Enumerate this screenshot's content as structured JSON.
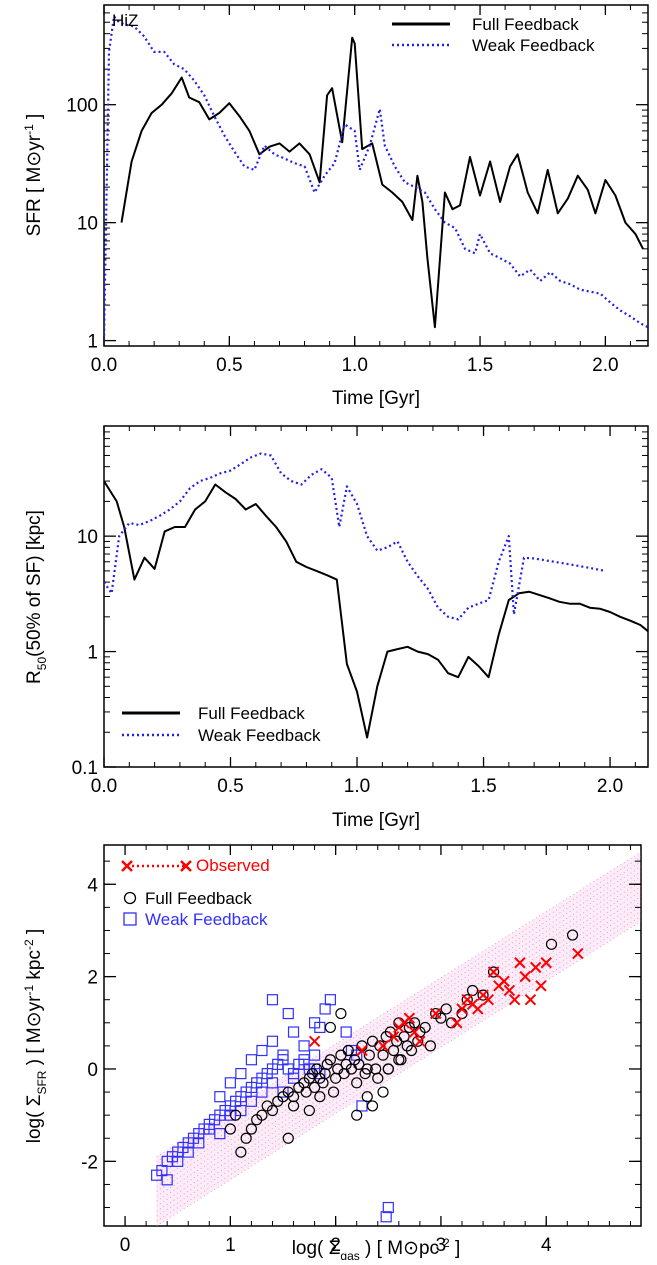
{
  "chart_data": [
    {
      "type": "line",
      "title": "",
      "annotation": "HiZ",
      "xlabel": "Time  [Gyr]",
      "ylabel": {
        "main": "SFR  [ M",
        "sun": "⊙",
        "mid": "yr",
        "sup": "-1",
        "end": "]"
      },
      "xlim": [
        0,
        2.17
      ],
      "ylim": [
        0.9,
        700
      ],
      "yscale": "log",
      "xticks": [
        "0.0",
        "0.5",
        "1.0",
        "1.5",
        "2.0"
      ],
      "xtick_values": [
        0,
        0.5,
        1.0,
        1.5,
        2.0
      ],
      "yticks": [
        "1",
        "10",
        "100"
      ],
      "ytick_values": [
        1,
        10,
        100
      ],
      "legend_position": "top-right",
      "series": [
        {
          "name": "Full Feedback",
          "color": "#000000",
          "style": "solid",
          "x": [
            0.07,
            0.11,
            0.15,
            0.19,
            0.23,
            0.27,
            0.31,
            0.34,
            0.38,
            0.42,
            0.46,
            0.5,
            0.54,
            0.58,
            0.62,
            0.66,
            0.7,
            0.74,
            0.78,
            0.82,
            0.86,
            0.89,
            0.91,
            0.95,
            0.99,
            1.0,
            1.03,
            1.07,
            1.11,
            1.15,
            1.19,
            1.23,
            1.25,
            1.27,
            1.29,
            1.32,
            1.36,
            1.39,
            1.42,
            1.46,
            1.5,
            1.54,
            1.58,
            1.62,
            1.65,
            1.69,
            1.73,
            1.77,
            1.81,
            1.85,
            1.89,
            1.93,
            1.96,
            2.0,
            2.04,
            2.08,
            2.12,
            2.15
          ],
          "y": [
            10,
            33,
            60,
            85,
            100,
            125,
            170,
            115,
            105,
            75,
            85,
            103,
            80,
            60,
            38,
            44,
            47,
            40,
            47,
            38,
            22,
            120,
            138,
            48,
            370,
            330,
            42,
            47,
            21,
            18,
            15,
            10.5,
            25,
            15,
            5,
            1.3,
            18,
            13,
            14,
            36,
            17,
            33,
            15,
            30,
            38,
            18,
            12,
            28,
            12,
            16,
            25,
            19,
            12,
            23,
            17,
            10,
            8,
            6
          ]
        },
        {
          "name": "Weak Feedback",
          "color": "#2020e8",
          "style": "dotted",
          "x": [
            0.0,
            0.02,
            0.04,
            0.06,
            0.08,
            0.12,
            0.16,
            0.2,
            0.24,
            0.28,
            0.32,
            0.36,
            0.4,
            0.44,
            0.48,
            0.52,
            0.56,
            0.6,
            0.64,
            0.68,
            0.72,
            0.76,
            0.8,
            0.84,
            0.88,
            0.92,
            0.96,
            1.0,
            1.02,
            1.06,
            1.1,
            1.12,
            1.16,
            1.2,
            1.24,
            1.28,
            1.32,
            1.36,
            1.4,
            1.44,
            1.48,
            1.5,
            1.54,
            1.58,
            1.62,
            1.66,
            1.7,
            1.74,
            1.78,
            1.82,
            1.86,
            1.9,
            1.94,
            1.98,
            2.02,
            2.06,
            2.1,
            2.14,
            2.17
          ],
          "y": [
            1,
            280,
            560,
            500,
            480,
            460,
            380,
            280,
            280,
            220,
            200,
            160,
            120,
            80,
            55,
            40,
            30,
            28,
            45,
            38,
            35,
            32,
            30,
            18,
            25,
            32,
            68,
            60,
            28,
            45,
            92,
            45,
            30,
            22,
            20,
            18,
            13,
            10,
            9,
            6,
            5.5,
            8,
            5.5,
            5,
            4.5,
            3.5,
            4,
            3.2,
            3.8,
            3.2,
            3,
            2.7,
            2.6,
            2.5,
            2.1,
            1.8,
            1.6,
            1.4,
            1.3
          ]
        }
      ]
    },
    {
      "type": "line",
      "title": "",
      "xlabel": "Time  [Gyr]",
      "ylabel": {
        "main": "R",
        "sub": "50",
        "rest": "(50% of SF)  [kpc]"
      },
      "xlim": [
        0,
        2.15
      ],
      "ylim": [
        0.1,
        90
      ],
      "yscale": "log",
      "xticks": [
        "0.0",
        "0.5",
        "1.0",
        "1.5",
        "2.0"
      ],
      "xtick_values": [
        0,
        0.5,
        1.0,
        1.5,
        2.0
      ],
      "yticks": [
        "0.1",
        "1",
        "10"
      ],
      "ytick_values": [
        0.1,
        1,
        10
      ],
      "legend_position": "bottom-left",
      "series": [
        {
          "name": "Full Feedback",
          "color": "#000000",
          "style": "solid",
          "x": [
            0.0,
            0.05,
            0.08,
            0.12,
            0.16,
            0.2,
            0.24,
            0.28,
            0.32,
            0.36,
            0.4,
            0.44,
            0.48,
            0.52,
            0.56,
            0.6,
            0.64,
            0.68,
            0.72,
            0.76,
            0.8,
            0.84,
            0.88,
            0.92,
            0.96,
            1.0,
            1.04,
            1.08,
            1.12,
            1.16,
            1.2,
            1.24,
            1.28,
            1.32,
            1.36,
            1.4,
            1.44,
            1.48,
            1.52,
            1.56,
            1.6,
            1.64,
            1.68,
            1.72,
            1.76,
            1.8,
            1.84,
            1.88,
            1.92,
            1.96,
            2.0,
            2.04,
            2.08,
            2.12,
            2.15
          ],
          "y": [
            30,
            20,
            12,
            4.2,
            6.5,
            5.2,
            11,
            12,
            12,
            17,
            20,
            28,
            24,
            21,
            17,
            19,
            15,
            12,
            9,
            6,
            5.4,
            5,
            4.6,
            4.2,
            0.78,
            0.45,
            0.18,
            0.5,
            1,
            1.05,
            1.1,
            1,
            0.95,
            0.85,
            0.65,
            0.6,
            0.9,
            0.75,
            0.6,
            1.4,
            2.8,
            3.2,
            3.3,
            3.1,
            2.9,
            2.7,
            2.6,
            2.6,
            2.4,
            2.35,
            2.2,
            2.0,
            1.85,
            1.7,
            1.5
          ]
        },
        {
          "name": "Weak Feedback",
          "color": "#2020e8",
          "style": "dotted",
          "x": [
            0.0,
            0.03,
            0.06,
            0.1,
            0.14,
            0.18,
            0.22,
            0.26,
            0.3,
            0.34,
            0.38,
            0.42,
            0.46,
            0.5,
            0.54,
            0.58,
            0.62,
            0.66,
            0.7,
            0.74,
            0.78,
            0.82,
            0.86,
            0.9,
            0.93,
            0.96,
            1.0,
            1.04,
            1.08,
            1.12,
            1.16,
            1.2,
            1.24,
            1.28,
            1.32,
            1.36,
            1.4,
            1.44,
            1.48,
            1.52,
            1.56,
            1.6,
            1.62,
            1.66,
            1.7,
            1.74,
            1.78,
            1.82,
            1.86,
            1.9,
            1.94,
            1.98
          ],
          "y": [
            4,
            3.2,
            10,
            13,
            12.5,
            13.5,
            15,
            17,
            20,
            26,
            30,
            32,
            35,
            37,
            42,
            48,
            52,
            50,
            35,
            30,
            28,
            34,
            38,
            32,
            12,
            27,
            19,
            10,
            7.5,
            8,
            9,
            6,
            4.5,
            3.5,
            2.4,
            2,
            1.9,
            2.4,
            2.6,
            2.8,
            6,
            10,
            2.1,
            6.5,
            6.4,
            6.2,
            6,
            5.8,
            5.6,
            5.4,
            5.2,
            5.0
          ]
        }
      ]
    },
    {
      "type": "scatter",
      "title": "",
      "xlabel": {
        "main": "log( Σ",
        "sub": "gas",
        "mid": " )  [ M",
        "sun": "⊙",
        "end": "pc",
        "sup": "-2",
        "close": " ]"
      },
      "ylabel": {
        "main": "log( Σ",
        "sub": "SFR",
        "mid": " )  [ M",
        "sun": "⊙",
        "yr": "yr",
        "sup1": "-1",
        "kpc": " kpc",
        "sup2": "-2",
        "close": " ]"
      },
      "xlim": [
        -0.2,
        4.9
      ],
      "ylim": [
        -3.4,
        4.85
      ],
      "xticks": [
        "0",
        "1",
        "2",
        "3",
        "4"
      ],
      "xtick_values": [
        0,
        1,
        2,
        3,
        4
      ],
      "yticks": [
        "-2",
        "0",
        "2",
        "4"
      ],
      "ytick_values": [
        -2,
        0,
        2,
        4
      ],
      "legend_position": "top-left",
      "band": {
        "color": "#e070c0",
        "lower": [
          [
            0.3,
            -3.4
          ],
          [
            4.9,
            3.2
          ]
        ],
        "upper": [
          [
            0.3,
            -1.9
          ],
          [
            4.9,
            4.7
          ]
        ]
      },
      "series": [
        {
          "name": "Observed",
          "marker": "x",
          "color": "#ff0000",
          "x": [
            1.8,
            2.25,
            2.45,
            2.55,
            2.6,
            2.65,
            2.7,
            2.75,
            2.8,
            2.95,
            3.15,
            3.2,
            3.25,
            3.3,
            3.35,
            3.4,
            3.45,
            3.5,
            3.55,
            3.6,
            3.65,
            3.7,
            3.75,
            3.8,
            3.85,
            3.9,
            3.95,
            4.0,
            4.3
          ],
          "y": [
            0.6,
            0.4,
            0.5,
            0.7,
            0.9,
            1.0,
            1.1,
            0.8,
            0.6,
            1.2,
            1.0,
            1.3,
            1.5,
            1.4,
            1.3,
            1.6,
            1.5,
            2.1,
            1.8,
            1.9,
            1.7,
            1.5,
            2.3,
            2.0,
            1.5,
            2.2,
            1.8,
            2.3,
            2.5
          ]
        },
        {
          "name": "Full Feedback",
          "marker": "circle",
          "color": "#000000",
          "x": [
            1.1,
            1.15,
            1.2,
            1.25,
            1.3,
            1.35,
            1.4,
            1.45,
            1.5,
            1.55,
            1.6,
            1.65,
            1.7,
            1.72,
            1.75,
            1.78,
            1.8,
            1.82,
            1.85,
            1.88,
            1.9,
            1.92,
            1.95,
            1.98,
            2.0,
            2.02,
            2.05,
            2.08,
            2.1,
            2.12,
            2.15,
            2.18,
            2.2,
            2.22,
            2.25,
            2.28,
            2.3,
            2.32,
            2.35,
            2.38,
            2.4,
            2.42,
            2.45,
            2.48,
            2.5,
            2.52,
            2.55,
            2.58,
            2.6,
            2.62,
            2.65,
            2.68,
            2.7,
            2.72,
            2.75,
            2.78,
            2.8,
            2.85,
            2.9,
            2.95,
            3.0,
            3.05,
            3.1,
            3.2,
            3.25,
            3.3,
            3.4,
            3.5,
            4.05,
            4.25,
            1.0,
            1.05,
            1.55,
            1.6,
            1.75,
            2.2,
            2.3,
            2.35,
            2.45,
            2.5,
            2.6,
            1.95,
            2.05,
            1.85
          ],
          "y": [
            -1.8,
            -1.5,
            -1.3,
            -1.1,
            -1.0,
            -0.8,
            -0.9,
            -0.7,
            -0.6,
            -0.5,
            -0.6,
            -0.4,
            -0.3,
            -0.5,
            -0.2,
            -0.1,
            -0.4,
            0.0,
            -0.2,
            -0.3,
            -0.1,
            0.1,
            0.2,
            -0.5,
            -0.2,
            0.0,
            0.3,
            -0.1,
            0.1,
            0.4,
            0.0,
            0.2,
            -0.3,
            0.1,
            0.5,
            -0.1,
            0.0,
            0.3,
            0.6,
            0.0,
            -0.2,
            0.5,
            0.3,
            0.7,
            0.0,
            0.8,
            0.4,
            0.6,
            1.0,
            0.2,
            0.7,
            0.5,
            0.9,
            0.4,
            1.0,
            0.6,
            0.8,
            0.9,
            0.5,
            1.2,
            1.1,
            1.3,
            1.0,
            1.2,
            1.5,
            1.7,
            1.6,
            2.1,
            2.7,
            2.9,
            -1.3,
            -1.0,
            -1.5,
            -0.8,
            -0.9,
            -1.0,
            -0.6,
            -0.8,
            -0.5,
            0.0,
            0.2,
            0.9,
            1.2,
            -0.6
          ]
        },
        {
          "name": "Weak Feedback",
          "marker": "square",
          "color": "#3030ff",
          "x": [
            0.3,
            0.35,
            0.4,
            0.45,
            0.5,
            0.55,
            0.6,
            0.65,
            0.7,
            0.75,
            0.8,
            0.85,
            0.9,
            0.95,
            1.0,
            1.05,
            1.1,
            1.15,
            1.2,
            1.25,
            1.3,
            1.35,
            1.4,
            1.45,
            1.5,
            1.55,
            1.6,
            1.65,
            1.7,
            1.75,
            1.8,
            1.85,
            0.4,
            0.5,
            0.6,
            0.7,
            0.8,
            0.9,
            1.0,
            1.1,
            1.2,
            1.3,
            1.4,
            1.5,
            1.6,
            1.7,
            1.8,
            0.9,
            1.0,
            1.1,
            1.2,
            1.3,
            1.4,
            1.5,
            1.6,
            1.7,
            1.8,
            1.9,
            1.95,
            2.1,
            2.15,
            2.2,
            2.48,
            2.5,
            1.4,
            1.55,
            1.85,
            2.25
          ],
          "y": [
            -2.3,
            -2.2,
            -2.0,
            -1.9,
            -1.8,
            -1.7,
            -1.6,
            -1.5,
            -1.4,
            -1.3,
            -1.2,
            -1.1,
            -1.0,
            -0.9,
            -0.8,
            -0.7,
            -0.6,
            -0.5,
            -0.4,
            -0.3,
            -0.2,
            -0.1,
            0.0,
            0.1,
            0.2,
            0.0,
            -0.2,
            0.1,
            0.2,
            0.0,
            0.3,
            -0.1,
            -2.4,
            -2.0,
            -1.8,
            -1.6,
            -1.3,
            -1.4,
            -1.0,
            -0.9,
            -0.7,
            -0.5,
            -0.3,
            -0.5,
            -0.1,
            0.1,
            0.0,
            -0.6,
            -0.3,
            -0.1,
            0.2,
            0.4,
            0.6,
            0.3,
            0.8,
            0.5,
            1.0,
            1.3,
            1.5,
            0.8,
            0.4,
            0.3,
            -3.2,
            -3.0,
            1.5,
            1.2,
            0.9,
            -0.8
          ]
        }
      ]
    }
  ]
}
